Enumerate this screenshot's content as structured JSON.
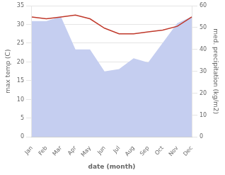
{
  "chart_data": {
    "type": "line",
    "xlabel": "date (month)",
    "ylabel": "max temp (C)",
    "y2label": "med. precipitation (kg/m2)",
    "categories": [
      "Jan",
      "Feb",
      "Mar",
      "Apr",
      "May",
      "Jun",
      "Jul",
      "Aug",
      "Sep",
      "Oct",
      "Nov",
      "Dec"
    ],
    "series": [
      {
        "type": "line",
        "color": "#c0392b",
        "values": [
          32.0,
          31.5,
          32.0,
          32.5,
          31.5,
          29.0,
          27.5,
          27.5,
          28.0,
          28.5,
          29.5,
          32.0
        ]
      },
      {
        "type": "area",
        "color": "#c5cef0",
        "axis": "y2",
        "values": [
          53,
          53,
          55,
          40,
          40,
          30,
          31,
          36,
          34,
          43,
          52,
          55
        ]
      }
    ],
    "ylim": [
      0,
      35
    ],
    "yticks": [
      0,
      5,
      10,
      15,
      20,
      25,
      30,
      35
    ],
    "y2lim": [
      0,
      60
    ],
    "y2ticks": [
      0,
      10,
      20,
      30,
      40,
      50,
      60
    ],
    "grid": true
  }
}
